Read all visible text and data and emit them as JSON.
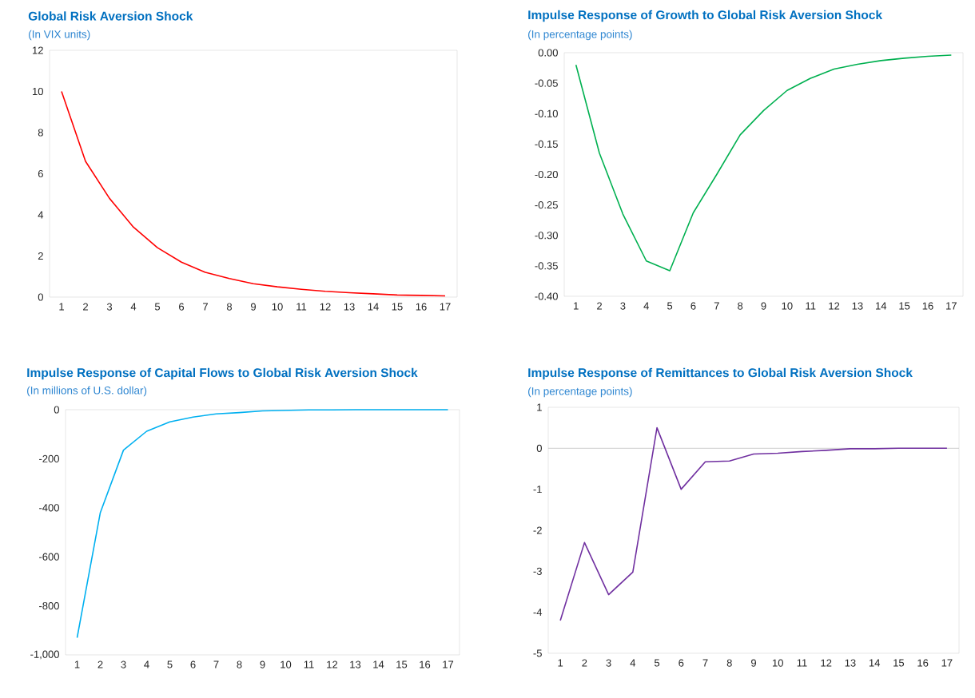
{
  "chart_data": [
    {
      "type": "line",
      "title": "Global Risk Aversion Shock",
      "subtitle": "(In VIX units)",
      "categories": [
        "1",
        "2",
        "3",
        "4",
        "5",
        "6",
        "7",
        "8",
        "9",
        "10",
        "11",
        "12",
        "13",
        "14",
        "15",
        "16",
        "17"
      ],
      "series": [
        {
          "color": "#ff0000",
          "values": [
            10,
            6.6,
            4.8,
            3.4,
            2.4,
            1.7,
            1.2,
            0.9,
            0.65,
            0.5,
            0.38,
            0.28,
            0.21,
            0.16,
            0.1,
            0.08,
            0.06
          ]
        }
      ],
      "ylim": [
        0,
        12
      ],
      "yticks": [
        0,
        2,
        4,
        6,
        8,
        10,
        12
      ],
      "marker": "none"
    },
    {
      "type": "line",
      "title": "Impulse Response of Growth to Global Risk Aversion Shock",
      "subtitle": "(In percentage points)",
      "categories": [
        "1",
        "2",
        "3",
        "4",
        "5",
        "6",
        "7",
        "8",
        "9",
        "10",
        "11",
        "12",
        "13",
        "14",
        "15",
        "16",
        "17"
      ],
      "series": [
        {
          "color": "#00b050",
          "values": [
            -0.02,
            -0.165,
            -0.265,
            -0.342,
            -0.358,
            -0.263,
            -0.2,
            -0.135,
            -0.095,
            -0.062,
            -0.042,
            -0.027,
            -0.019,
            -0.013,
            -0.009,
            -0.006,
            -0.004
          ]
        }
      ],
      "ylim": [
        -0.4,
        0
      ],
      "yticks": [
        {
          "value": -0.4,
          "label": "-0.40"
        },
        {
          "value": -0.35,
          "label": "-0.35"
        },
        {
          "value": -0.3,
          "label": "-0.30"
        },
        {
          "value": -0.25,
          "label": "-0.25"
        },
        {
          "value": -0.2,
          "label": "-0.20"
        },
        {
          "value": -0.15,
          "label": "-0.15"
        },
        {
          "value": -0.1,
          "label": "-0.10"
        },
        {
          "value": -0.05,
          "label": "-0.05"
        },
        {
          "value": 0,
          "label": "0.00"
        }
      ],
      "marker": "none"
    },
    {
      "type": "line",
      "title": "Impulse Response of Capital Flows to Global Risk Aversion Shock",
      "subtitle": "(In millions of U.S. dollar)",
      "categories": [
        "1",
        "2",
        "3",
        "4",
        "5",
        "6",
        "7",
        "8",
        "9",
        "10",
        "11",
        "12",
        "13",
        "14",
        "15",
        "16",
        "17"
      ],
      "series": [
        {
          "color": "#00b0f0",
          "values": [
            -930,
            -420,
            -165,
            -88,
            -50,
            -30,
            -17,
            -12,
            -5,
            -3,
            -1,
            -1,
            0,
            0,
            0,
            0,
            0
          ]
        }
      ],
      "ylim": [
        -1000,
        0
      ],
      "yticks": [
        {
          "value": -1000,
          "label": "-1,000"
        },
        -800,
        -600,
        -400,
        -200,
        0
      ],
      "marker": "none"
    },
    {
      "type": "line",
      "title": "Impulse Response of Remittances to Global Risk Aversion Shock",
      "subtitle": "(In percentage points)",
      "categories": [
        "1",
        "2",
        "3",
        "4",
        "5",
        "6",
        "7",
        "8",
        "9",
        "10",
        "11",
        "12",
        "13",
        "14",
        "15",
        "16",
        "17"
      ],
      "series": [
        {
          "color": "#7030a0",
          "values": [
            -4.2,
            -2.3,
            -3.57,
            -3.02,
            0.5,
            -1.0,
            -0.33,
            -0.31,
            -0.14,
            -0.12,
            -0.08,
            -0.05,
            -0.01,
            -0.01,
            0,
            0,
            0
          ]
        }
      ],
      "ylim": [
        -5,
        1
      ],
      "yticks": [
        -5,
        -4,
        -3,
        -2,
        -1,
        0,
        1
      ],
      "ref_lines": [
        {
          "axis": "y",
          "value": 0,
          "color": "#bfbfbf"
        }
      ],
      "marker": "none"
    }
  ]
}
